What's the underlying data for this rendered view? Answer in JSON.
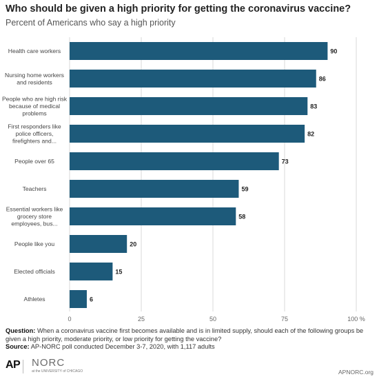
{
  "header": {
    "title": "Who should be given a high priority for getting the coronavirus vaccine?",
    "subtitle": "Percent of Americans who say a high priority"
  },
  "chart_data": {
    "type": "bar",
    "orientation": "horizontal",
    "categories": [
      [
        "Health care workers"
      ],
      [
        "Nursing home workers",
        "and residents"
      ],
      [
        "People who are high risk",
        "because of medical",
        "problems"
      ],
      [
        "First responders like",
        "police officers,",
        "firefighters and..."
      ],
      [
        "People over 65"
      ],
      [
        "Teachers"
      ],
      [
        "Essential workers like",
        "grocery store",
        "employees, bus..."
      ],
      [
        "People like you"
      ],
      [
        "Elected officials"
      ],
      [
        "Athletes"
      ]
    ],
    "values": [
      90,
      86,
      83,
      82,
      73,
      59,
      58,
      20,
      15,
      6
    ],
    "xlim": [
      0,
      100
    ],
    "ticks": [
      "0",
      "25",
      "50",
      "75",
      "100 %"
    ],
    "tick_values": [
      0,
      25,
      50,
      75,
      100
    ],
    "bar_color": "#1d5a7a",
    "grid": true
  },
  "footer": {
    "question_label": "Question:",
    "question_text": " When a coronavirus vaccine first becomes available and is in limited supply, should each of the following groups be given a high priority, moderate priority, or low priority for getting the vaccine?",
    "source_label": "Source:",
    "source_text": " AP-NORC poll conducted December 3-7, 2020, with 1,117 adults"
  },
  "branding": {
    "ap": "AP",
    "norc": "NORC",
    "norc_sub": "at the UNIVERSITY of CHICAGO",
    "url": "APNORC.org"
  }
}
